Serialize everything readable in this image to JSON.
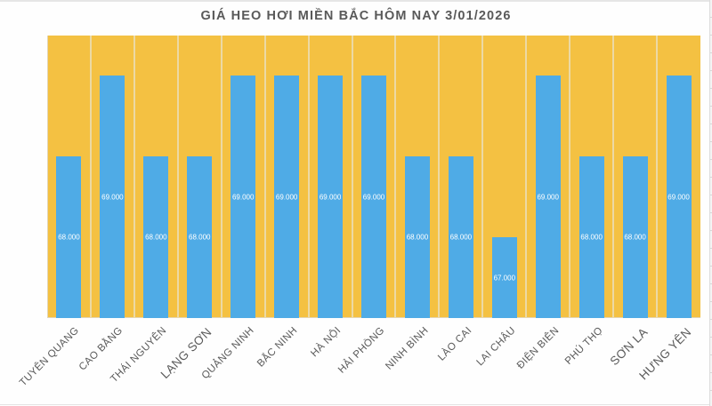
{
  "title": "GIÁ HEO HƠI MIỀN BẮC HÔM NAY 3/01/2026",
  "colors": {
    "plot_background": "#F4C142",
    "bar": "#4FABE6",
    "gridline": "#ECD9A4",
    "title_text": "#595959",
    "axis_label_text": "#595959",
    "data_label_text": "#FFFFFF"
  },
  "chart_data": {
    "type": "bar",
    "title": "GIÁ HEO HƠI MIỀN BẮC HÔM NAY 3/01/2026",
    "xlabel": "",
    "ylabel": "",
    "ylim": [
      66,
      69.5
    ],
    "grid": {
      "vertical": true,
      "horizontal": false
    },
    "legend": null,
    "categories": [
      "TUYÊN QUANG",
      "CAO BẰNG",
      "THÁI NGUYÊN",
      "LẠNG SƠN",
      "QUẢNG NINH",
      "BẮC NINH",
      "HÀ NỘI",
      "HẢI PHÒNG",
      "NINH BÌNH",
      "LÀO CAI",
      "LAI CHÂU",
      "ĐIỆN BIÊN",
      "PHÚ THỌ",
      "SƠN LA",
      "HƯNG YÊN"
    ],
    "values": [
      68,
      69,
      68,
      68,
      69,
      69,
      69,
      69,
      68,
      68,
      67,
      69,
      68,
      68,
      69
    ],
    "data_labels": [
      "68.000",
      "69.000",
      "68.000",
      "68.000",
      "69.000",
      "69.000",
      "69.000",
      "69.000",
      "68.000",
      "68.000",
      "67.000",
      "69.000",
      "68.000",
      "68.000",
      "69.000"
    ],
    "x_label_rotation_deg": -45
  }
}
